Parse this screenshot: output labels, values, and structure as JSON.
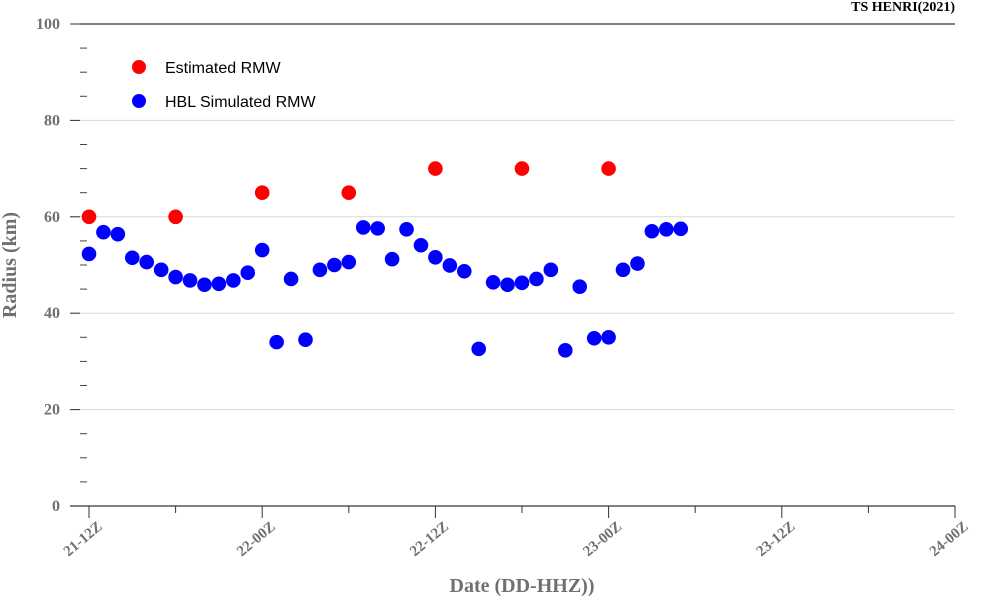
{
  "chart_data": {
    "type": "scatter",
    "title": "TS HENRI(2021)",
    "xlabel": "Date (DD-HHZ))",
    "ylabel": "Radius (km)",
    "xlim": [
      0,
      60
    ],
    "ylim": [
      0,
      100
    ],
    "x_tick_values": [
      0,
      12,
      24,
      36,
      48,
      60
    ],
    "x_tick_labels": [
      "21-12Z",
      "22-00Z",
      "22-12Z",
      "23-00Z",
      "23-12Z",
      "24-00Z"
    ],
    "y_tick_values": [
      0,
      20,
      40,
      60,
      80,
      100
    ],
    "y_tick_labels": [
      "0",
      "20",
      "40",
      "60",
      "80",
      "100"
    ],
    "grid": true,
    "legend_position": "top-left",
    "series": [
      {
        "name": "Estimated RMW",
        "color": "#ff0000",
        "points": [
          [
            0,
            60
          ],
          [
            6,
            60
          ],
          [
            12,
            65
          ],
          [
            18,
            65
          ],
          [
            24,
            70
          ],
          [
            30,
            70
          ],
          [
            36,
            70
          ]
        ]
      },
      {
        "name": "HBL Simulated RMW",
        "color": "#0000ff",
        "points": [
          [
            0,
            52.3
          ],
          [
            1,
            56.8
          ],
          [
            2,
            56.4
          ],
          [
            3,
            51.5
          ],
          [
            4,
            50.6
          ],
          [
            5,
            49
          ],
          [
            6,
            47.5
          ],
          [
            7,
            46.8
          ],
          [
            8,
            45.9
          ],
          [
            9,
            46.1
          ],
          [
            10,
            46.8
          ],
          [
            11,
            48.4
          ],
          [
            12,
            53.1
          ],
          [
            13,
            34
          ],
          [
            14,
            47.1
          ],
          [
            15,
            34.5
          ],
          [
            16,
            49
          ],
          [
            17,
            50
          ],
          [
            18,
            50.6
          ],
          [
            19,
            57.8
          ],
          [
            20,
            57.6
          ],
          [
            21,
            51.2
          ],
          [
            22,
            57.4
          ],
          [
            23,
            54.1
          ],
          [
            24,
            51.6
          ],
          [
            25,
            49.9
          ],
          [
            26,
            48.7
          ],
          [
            27,
            32.6
          ],
          [
            28,
            46.4
          ],
          [
            29,
            45.9
          ],
          [
            30,
            46.3
          ],
          [
            31,
            47.1
          ],
          [
            32,
            49
          ],
          [
            33,
            32.3
          ],
          [
            34,
            45.5
          ],
          [
            35,
            34.8
          ],
          [
            36,
            35
          ],
          [
            37,
            49
          ],
          [
            38,
            50.3
          ],
          [
            39,
            57
          ],
          [
            40,
            57.4
          ],
          [
            41,
            57.5
          ]
        ]
      }
    ]
  }
}
